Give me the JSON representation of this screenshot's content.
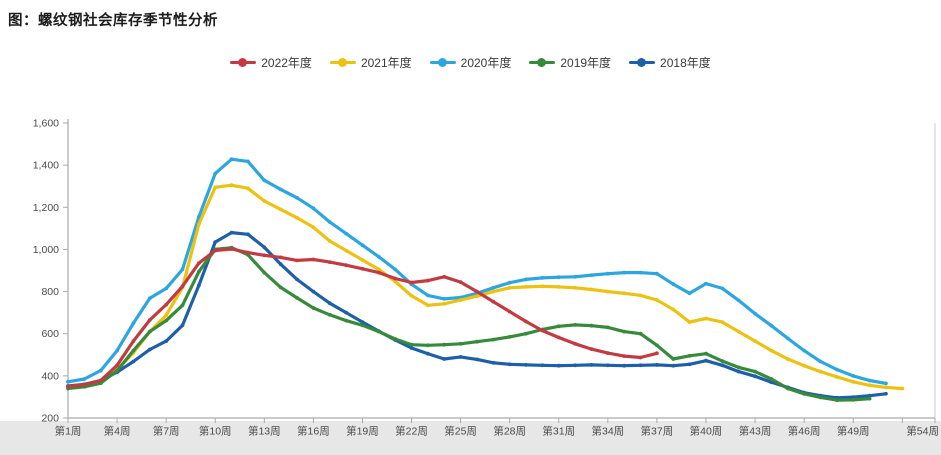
{
  "page_title": "图：螺纹钢社会库存季节性分析",
  "colors": {
    "axis": "#aaaaaa",
    "tick_text": "#4a4a4a",
    "bottom_band": "#e7e7e7",
    "plot_right_border": "#cccccc"
  },
  "chart_data": {
    "type": "line",
    "title": "图：螺纹钢社会库存季节性分析",
    "xlabel": "",
    "ylabel": "",
    "ylim": [
      200,
      1600
    ],
    "y_ticks": [
      {
        "value": 200,
        "label": "200"
      },
      {
        "value": 400,
        "label": "400"
      },
      {
        "value": 600,
        "label": "600"
      },
      {
        "value": 800,
        "label": "800"
      },
      {
        "value": 1000,
        "label": "1,000"
      },
      {
        "value": 1200,
        "label": "1,200"
      },
      {
        "value": 1400,
        "label": "1,400"
      },
      {
        "value": 1600,
        "label": "1,600"
      }
    ],
    "x_ticks": [
      {
        "week": 1,
        "label": "第1周"
      },
      {
        "week": 4,
        "label": "第4周"
      },
      {
        "week": 7,
        "label": "第7周"
      },
      {
        "week": 10,
        "label": "第10周"
      },
      {
        "week": 13,
        "label": "第13周"
      },
      {
        "week": 16,
        "label": "第16周"
      },
      {
        "week": 19,
        "label": "第19周"
      },
      {
        "week": 22,
        "label": "第22周"
      },
      {
        "week": 25,
        "label": "第25周"
      },
      {
        "week": 28,
        "label": "第28周"
      },
      {
        "week": 31,
        "label": "第31周"
      },
      {
        "week": 34,
        "label": "第34周"
      },
      {
        "week": 37,
        "label": "第37周"
      },
      {
        "week": 40,
        "label": "第40周"
      },
      {
        "week": 43,
        "label": "第43周"
      },
      {
        "week": 46,
        "label": "第46周"
      },
      {
        "week": 49,
        "label": "第49周"
      },
      {
        "week": 52,
        "label": ""
      },
      {
        "week": 54,
        "label": "第54周"
      }
    ],
    "grid": false,
    "legend_position": "top",
    "x_unit": "week",
    "x_range": [
      1,
      54
    ],
    "series": [
      {
        "name": "2022年度",
        "color": "#c23b42",
        "values": [
          350,
          358,
          378,
          450,
          565,
          665,
          738,
          825,
          935,
          995,
          1002,
          985,
          972,
          962,
          948,
          952,
          940,
          925,
          908,
          890,
          862,
          843,
          852,
          870,
          845,
          800,
          752,
          705,
          658,
          615,
          582,
          552,
          527,
          508,
          494,
          487,
          507,
          null,
          null,
          null,
          null,
          null,
          null,
          null,
          null,
          null,
          null,
          null,
          null,
          null,
          null,
          null,
          null,
          null
        ]
      },
      {
        "name": "2021年度",
        "color": "#ecc112",
        "values": [
          348,
          356,
          378,
          428,
          510,
          610,
          688,
          820,
          1120,
          1295,
          1305,
          1290,
          1230,
          1190,
          1150,
          1105,
          1040,
          995,
          950,
          905,
          848,
          780,
          735,
          742,
          760,
          778,
          800,
          818,
          822,
          825,
          822,
          818,
          810,
          800,
          792,
          782,
          760,
          715,
          655,
          672,
          655,
          610,
          565,
          520,
          480,
          448,
          420,
          395,
          372,
          355,
          345,
          340,
          null,
          null
        ]
      },
      {
        "name": "2020年度",
        "color": "#2ca6e0",
        "values": [
          372,
          385,
          425,
          520,
          650,
          768,
          815,
          905,
          1155,
          1360,
          1428,
          1418,
          1328,
          1285,
          1245,
          1195,
          1130,
          1075,
          1020,
          965,
          905,
          835,
          782,
          765,
          772,
          792,
          818,
          842,
          858,
          865,
          868,
          870,
          878,
          885,
          890,
          890,
          885,
          835,
          792,
          838,
          815,
          758,
          695,
          638,
          578,
          520,
          468,
          430,
          400,
          378,
          364,
          null,
          null,
          null
        ]
      },
      {
        "name": "2019年度",
        "color": "#378a3c",
        "values": [
          340,
          348,
          365,
          425,
          520,
          610,
          662,
          735,
          895,
          1000,
          1008,
          975,
          890,
          820,
          770,
          722,
          690,
          662,
          640,
          610,
          575,
          548,
          545,
          548,
          552,
          562,
          572,
          585,
          600,
          620,
          635,
          642,
          638,
          630,
          610,
          600,
          545,
          480,
          495,
          505,
          470,
          440,
          420,
          385,
          340,
          315,
          298,
          285,
          286,
          292,
          null,
          null,
          null,
          null
        ]
      },
      {
        "name": "2018年度",
        "color": "#1d5fa8",
        "values": [
          352,
          360,
          378,
          418,
          468,
          525,
          565,
          640,
          830,
          1035,
          1080,
          1072,
          1010,
          930,
          858,
          800,
          745,
          700,
          655,
          612,
          570,
          532,
          505,
          480,
          490,
          478,
          462,
          455,
          452,
          450,
          448,
          450,
          452,
          450,
          448,
          450,
          452,
          448,
          455,
          472,
          450,
          420,
          398,
          370,
          345,
          320,
          306,
          296,
          299,
          306,
          315,
          null,
          null,
          null
        ]
      }
    ]
  }
}
